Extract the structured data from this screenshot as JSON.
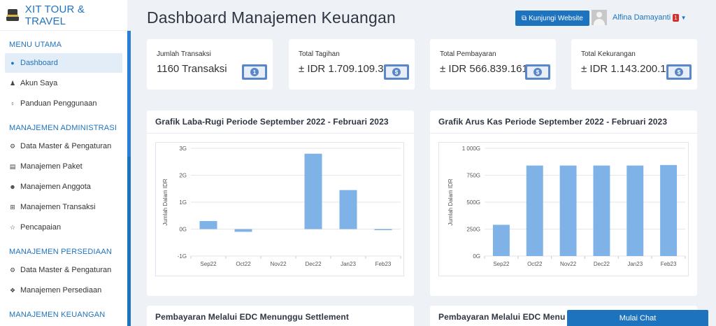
{
  "brand": {
    "name": "XIT TOUR & TRAVEL"
  },
  "sidebar": {
    "sections": [
      {
        "header": "MENU UTAMA",
        "items": [
          {
            "label": "Dashboard",
            "icon": "globe-icon",
            "active": true
          },
          {
            "label": "Akun Saya",
            "icon": "user-icon"
          },
          {
            "label": "Panduan Penggunaan",
            "icon": "lightbulb-icon"
          }
        ]
      },
      {
        "header": "MANAJEMEN ADMINISTRASI",
        "items": [
          {
            "label": "Data Master & Pengaturan",
            "icon": "cogs-icon"
          },
          {
            "label": "Manajemen Paket",
            "icon": "book-icon"
          },
          {
            "label": "Manajemen Anggota",
            "icon": "users-icon"
          },
          {
            "label": "Manajemen Transaksi",
            "icon": "cart-icon"
          },
          {
            "label": "Pencapaian",
            "icon": "star-icon"
          }
        ]
      },
      {
        "header": "MANAJEMEN PERSEDIAAN",
        "items": [
          {
            "label": "Data Master & Pengaturan",
            "icon": "cogs-icon"
          },
          {
            "label": "Manajemen Persediaan",
            "icon": "cubes-icon"
          }
        ]
      },
      {
        "header": "MANAJEMEN KEUANGAN",
        "items": []
      }
    ]
  },
  "header": {
    "title": "Dashboard Manajemen Keuangan",
    "website_button": "Kunjungi Website",
    "user_name": "Alfina Damayanti",
    "notification_count": "1"
  },
  "stats": [
    {
      "label": "Jumlah Transaksi",
      "value": "1160 Transaksi"
    },
    {
      "label": "Total Tagihan",
      "value": "± IDR 1.709.109.338"
    },
    {
      "label": "Total Pembayaran",
      "value": "± IDR 566.839.161,6"
    },
    {
      "label": "Total Kekurangan",
      "value": "± IDR 1.143.200.130,1"
    }
  ],
  "panels": {
    "laba_rugi_title": "Grafik Laba-Rugi Periode September 2022 - Februari 2023",
    "arus_kas_title": "Grafik Arus Kas Periode September 2022 - Februari 2023",
    "edc_title_left": "Pembayaran Melalui EDC Menunggu Settlement",
    "edc_title_right": "Pembayaran Melalui EDC Menu"
  },
  "chat_button": "Mulai Chat",
  "colors": {
    "primary": "#1e73be",
    "bar": "#7fb3e8"
  },
  "chart_data": [
    {
      "type": "bar",
      "categories": [
        "Sep22",
        "Oct22",
        "Nov22",
        "Dec22",
        "Jan23",
        "Feb23"
      ],
      "values": [
        0.3,
        -0.1,
        0,
        2.8,
        1.45,
        -0.03
      ],
      "ylabel": "Jumlah Dalam IDR",
      "yticks": [
        "-1G",
        "0G",
        "1G",
        "2G",
        "3G"
      ],
      "ylim": [
        -1,
        3
      ]
    },
    {
      "type": "bar",
      "categories": [
        "Sep22",
        "Oct22",
        "Nov22",
        "Dec22",
        "Jan23",
        "Feb23"
      ],
      "values": [
        290,
        840,
        840,
        840,
        840,
        845
      ],
      "ylabel": "Jumlah Dalam IDR",
      "yticks": [
        "0G",
        "250G",
        "500G",
        "750G",
        "1 000G"
      ],
      "ylim": [
        0,
        1000
      ]
    }
  ]
}
